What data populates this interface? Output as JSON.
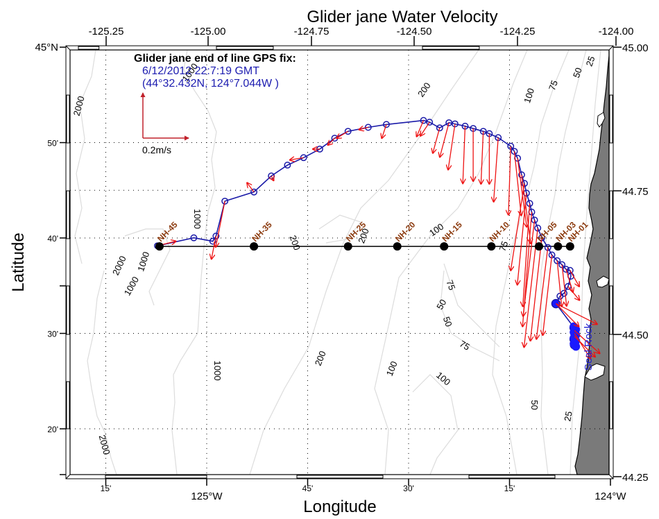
{
  "chart_data": {
    "type": "map",
    "title": "Glider jane Water Velocity",
    "xlabel": "Longitude",
    "ylabel": "Latitude",
    "xlim": [
      -125.333,
      -124.0
    ],
    "ylim": [
      44.25,
      45.0
    ],
    "top_ticks": [
      "-125.25",
      "-125.00",
      "-124.75",
      "-124.50",
      "-124.25",
      "-124.00"
    ],
    "top_tick_values": [
      -125.25,
      -125.0,
      -124.75,
      -124.5,
      -124.25,
      -124.0
    ],
    "right_ticks": [
      "45.00",
      "44.75",
      "44.50",
      "44.25"
    ],
    "right_tick_values": [
      45.0,
      44.75,
      44.5,
      44.25
    ],
    "bottom_ticks": [
      {
        "label": "15'",
        "lon": -125.25
      },
      {
        "label": "125°W",
        "lon": -125.0
      },
      {
        "label": "45'",
        "lon": -124.75
      },
      {
        "label": "30'",
        "lon": -124.5
      },
      {
        "label": "15'",
        "lon": -124.25
      },
      {
        "label": "124°W",
        "lon": -124.0
      }
    ],
    "left_ticks": [
      {
        "label": "45°N",
        "lat": 45.0
      },
      {
        "label": "50'",
        "lat": 44.8333
      },
      {
        "label": "40'",
        "lat": 44.6667
      },
      {
        "label": "30'",
        "lat": 44.5
      },
      {
        "label": "20'",
        "lat": 44.3333
      }
    ],
    "grid": "dotted",
    "gps_fix": {
      "title": "Glider jane end of line GPS fix:",
      "time": "6/12/2012 22:7:19 GMT",
      "position": "(44°32.432N, 124°7.044W )"
    },
    "scale_arrow": {
      "label": "0.2m/s"
    },
    "place_label": "Seal Rock",
    "stations": [
      {
        "name": "NH-45",
        "lon": -125.117,
        "lat": 44.652
      },
      {
        "name": "NH-35",
        "lon": -124.883,
        "lat": 44.652
      },
      {
        "name": "NH-25",
        "lon": -124.65,
        "lat": 44.652
      },
      {
        "name": "NH-20",
        "lon": -124.528,
        "lat": 44.652
      },
      {
        "name": "NH-15",
        "lon": -124.412,
        "lat": 44.652
      },
      {
        "name": "NH-10",
        "lon": -124.295,
        "lat": 44.652
      },
      {
        "name": "NH-05",
        "lon": -124.177,
        "lat": 44.652
      },
      {
        "name": "NH-03",
        "lon": -124.13,
        "lat": 44.652
      },
      {
        "name": "NH-01",
        "lon": -124.1,
        "lat": 44.652
      }
    ],
    "track": [
      [
        -125.122,
        44.653
      ],
      [
        -125.032,
        44.667
      ],
      [
        -124.985,
        44.661
      ],
      [
        -124.977,
        44.67
      ],
      [
        -124.955,
        44.731
      ],
      [
        -124.883,
        44.747
      ],
      [
        -124.84,
        44.775
      ],
      [
        -124.8,
        44.794
      ],
      [
        -124.76,
        44.807
      ],
      [
        -124.72,
        44.822
      ],
      [
        -124.683,
        44.841
      ],
      [
        -124.65,
        44.853
      ],
      [
        -124.6,
        44.86
      ],
      [
        -124.555,
        44.865
      ],
      [
        -124.463,
        44.872
      ],
      [
        -124.448,
        44.869
      ],
      [
        -124.423,
        44.859
      ],
      [
        -124.4,
        44.868
      ],
      [
        -124.385,
        44.866
      ],
      [
        -124.36,
        44.862
      ],
      [
        -124.34,
        44.858
      ],
      [
        -124.315,
        44.853
      ],
      [
        -124.3,
        44.849
      ],
      [
        -124.278,
        44.842
      ],
      [
        -124.247,
        44.827
      ],
      [
        -124.238,
        44.818
      ],
      [
        -124.23,
        44.806
      ],
      [
        -124.22,
        44.777
      ],
      [
        -124.213,
        44.762
      ],
      [
        -124.208,
        44.745
      ],
      [
        -124.2,
        44.727
      ],
      [
        -124.195,
        44.712
      ],
      [
        -124.188,
        44.698
      ],
      [
        -124.18,
        44.684
      ],
      [
        -124.17,
        44.667
      ],
      [
        -124.155,
        44.65
      ],
      [
        -124.145,
        44.637
      ],
      [
        -124.132,
        44.627
      ],
      [
        -124.12,
        44.62
      ],
      [
        -124.11,
        44.612
      ],
      [
        -124.1,
        44.61
      ],
      [
        -124.098,
        44.6
      ],
      [
        -124.105,
        44.582
      ],
      [
        -124.115,
        44.57
      ],
      [
        -124.125,
        44.565
      ],
      [
        -124.135,
        44.552
      ],
      [
        -124.09,
        44.51
      ],
      [
        -124.088,
        44.5
      ],
      [
        -124.09,
        44.49
      ],
      [
        -124.089,
        44.48
      ]
    ],
    "velocity_vectors": [
      {
        "lon": -125.122,
        "lat": 44.653,
        "u": 0.08,
        "v": 0.02
      },
      {
        "lon": -124.977,
        "lat": 44.67,
        "u": -0.02,
        "v": -0.1
      },
      {
        "lon": -124.955,
        "lat": 44.731,
        "u": -0.04,
        "v": -0.2
      },
      {
        "lon": -124.883,
        "lat": 44.747,
        "u": -0.03,
        "v": 0.04
      },
      {
        "lon": -124.84,
        "lat": 44.775,
        "u": 0.01,
        "v": -0.02
      },
      {
        "lon": -124.76,
        "lat": 44.807,
        "u": -0.06,
        "v": -0.01
      },
      {
        "lon": -124.72,
        "lat": 44.822,
        "u": -0.03,
        "v": 0.0
      },
      {
        "lon": -124.683,
        "lat": 44.841,
        "u": -0.03,
        "v": -0.03
      },
      {
        "lon": -124.65,
        "lat": 44.853,
        "u": -0.05,
        "v": -0.03
      },
      {
        "lon": -124.6,
        "lat": 44.86,
        "u": -0.04,
        "v": -0.01
      },
      {
        "lon": -124.555,
        "lat": 44.865,
        "u": -0.02,
        "v": -0.06
      },
      {
        "lon": -124.463,
        "lat": 44.872,
        "u": -0.03,
        "v": -0.07
      },
      {
        "lon": -124.448,
        "lat": 44.869,
        "u": -0.04,
        "v": -0.06
      },
      {
        "lon": -124.423,
        "lat": 44.859,
        "u": -0.03,
        "v": -0.11
      },
      {
        "lon": -124.4,
        "lat": 44.868,
        "u": -0.04,
        "v": -0.15
      },
      {
        "lon": -124.385,
        "lat": 44.866,
        "u": -0.03,
        "v": -0.2
      },
      {
        "lon": -124.36,
        "lat": 44.862,
        "u": -0.01,
        "v": -0.25
      },
      {
        "lon": -124.34,
        "lat": 44.858,
        "u": 0.0,
        "v": -0.23
      },
      {
        "lon": -124.315,
        "lat": 44.853,
        "u": -0.01,
        "v": -0.23
      },
      {
        "lon": -124.3,
        "lat": 44.849,
        "u": 0.0,
        "v": -0.22
      },
      {
        "lon": -124.278,
        "lat": 44.842,
        "u": -0.02,
        "v": -0.28
      },
      {
        "lon": -124.247,
        "lat": 44.827,
        "u": -0.01,
        "v": -0.3
      },
      {
        "lon": -124.238,
        "lat": 44.818,
        "u": 0.03,
        "v": -0.28
      },
      {
        "lon": -124.23,
        "lat": 44.806,
        "u": 0.04,
        "v": -0.3
      },
      {
        "lon": -124.22,
        "lat": 44.777,
        "u": 0.04,
        "v": -0.3
      },
      {
        "lon": -124.213,
        "lat": 44.762,
        "u": -0.06,
        "v": -0.38
      },
      {
        "lon": -124.208,
        "lat": 44.745,
        "u": -0.04,
        "v": -0.4
      },
      {
        "lon": -124.2,
        "lat": 44.727,
        "u": -0.03,
        "v": -0.45
      },
      {
        "lon": -124.195,
        "lat": 44.712,
        "u": -0.04,
        "v": -0.5
      },
      {
        "lon": -124.188,
        "lat": 44.698,
        "u": -0.05,
        "v": -0.42
      },
      {
        "lon": -124.18,
        "lat": 44.684,
        "u": -0.06,
        "v": -0.52
      },
      {
        "lon": -124.17,
        "lat": 44.667,
        "u": -0.05,
        "v": -0.45
      },
      {
        "lon": -124.155,
        "lat": 44.65,
        "u": -0.05,
        "v": -0.4
      },
      {
        "lon": -124.145,
        "lat": 44.637,
        "u": -0.04,
        "v": -0.35
      },
      {
        "lon": -124.132,
        "lat": 44.627,
        "u": 0.02,
        "v": -0.2
      },
      {
        "lon": -124.12,
        "lat": 44.62,
        "u": 0.02,
        "v": -0.18
      },
      {
        "lon": -124.11,
        "lat": 44.612,
        "u": 0.03,
        "v": -0.1
      },
      {
        "lon": -124.1,
        "lat": 44.61,
        "u": 0.04,
        "v": -0.07
      },
      {
        "lon": -124.105,
        "lat": 44.582,
        "u": 0.05,
        "v": -0.06
      },
      {
        "lon": -124.135,
        "lat": 44.552,
        "u": 0.18,
        "v": -0.09
      },
      {
        "lon": -124.135,
        "lat": 44.552,
        "u": 0.1,
        "v": -0.1
      },
      {
        "lon": -124.089,
        "lat": 44.495,
        "u": 0.09,
        "v": -0.09
      },
      {
        "lon": -124.089,
        "lat": 44.5,
        "u": 0.07,
        "v": -0.11
      },
      {
        "lon": -124.089,
        "lat": 44.505,
        "u": 0.11,
        "v": -0.1
      }
    ],
    "contour_labels": [
      {
        "text": "2000",
        "lon": -125.315,
        "lat": 44.897,
        "rot": -75
      },
      {
        "text": "1000",
        "lon": -125.04,
        "lat": 44.955,
        "rot": -55
      },
      {
        "text": "1000",
        "lon": -125.025,
        "lat": 44.7,
        "rot": 90
      },
      {
        "text": "2000",
        "lon": -125.215,
        "lat": 44.618,
        "rot": -65
      },
      {
        "text": "1000",
        "lon": -125.155,
        "lat": 44.625,
        "rot": -72
      },
      {
        "text": "1000",
        "lon": -125.185,
        "lat": 44.582,
        "rot": -60
      },
      {
        "text": "200",
        "lon": -124.783,
        "lat": 44.658,
        "rot": 70
      },
      {
        "text": "200",
        "lon": -124.61,
        "lat": 44.67,
        "rot": -70
      },
      {
        "text": "100",
        "lon": -124.43,
        "lat": 44.68,
        "rot": -35
      },
      {
        "text": "75",
        "lon": -124.263,
        "lat": 44.652,
        "rot": -70
      },
      {
        "text": "200",
        "lon": -124.46,
        "lat": 44.925,
        "rot": -55
      },
      {
        "text": "100",
        "lon": -124.2,
        "lat": 44.915,
        "rot": -72
      },
      {
        "text": "75",
        "lon": -124.14,
        "lat": 44.933,
        "rot": -70
      },
      {
        "text": "50",
        "lon": -124.08,
        "lat": 44.955,
        "rot": -70
      },
      {
        "text": "25",
        "lon": -124.048,
        "lat": 44.975,
        "rot": -70
      },
      {
        "text": "75",
        "lon": -124.397,
        "lat": 44.584,
        "rot": 70
      },
      {
        "text": "50",
        "lon": -124.417,
        "lat": 44.55,
        "rot": -60
      },
      {
        "text": "50",
        "lon": -124.405,
        "lat": 44.52,
        "rot": 70
      },
      {
        "text": "75",
        "lon": -124.362,
        "lat": 44.478,
        "rot": 30
      },
      {
        "text": "100",
        "lon": -124.415,
        "lat": 44.42,
        "rot": 40
      },
      {
        "text": "100",
        "lon": -124.54,
        "lat": 44.438,
        "rot": -68
      },
      {
        "text": "200",
        "lon": -124.717,
        "lat": 44.456,
        "rot": -68
      },
      {
        "text": "1000",
        "lon": -124.975,
        "lat": 44.435,
        "rot": 90
      },
      {
        "text": "2000",
        "lon": -125.255,
        "lat": 44.305,
        "rot": 75
      },
      {
        "text": "50",
        "lon": -124.19,
        "lat": 44.375,
        "rot": 90
      },
      {
        "text": "25",
        "lon": -124.103,
        "lat": 44.355,
        "rot": -80
      }
    ]
  }
}
